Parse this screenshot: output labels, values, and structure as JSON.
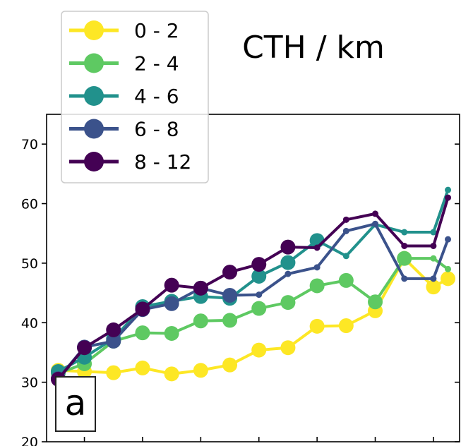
{
  "chart_data": {
    "type": "line",
    "title": "CTH / km",
    "panel_label": "a",
    "xlabel": "",
    "ylabel": "",
    "ylim": [
      20,
      75
    ],
    "yticks": [
      20,
      30,
      40,
      50,
      60,
      70
    ],
    "xlim": [
      0.2,
      14.4
    ],
    "legend_placement": "top-left",
    "series": [
      {
        "name": "0 - 2",
        "color": "#fde725",
        "x": [
          0.6,
          1.5,
          2.5,
          3.5,
          4.5,
          5.5,
          6.5,
          7.5,
          8.5,
          9.5,
          10.5,
          11.5,
          12.5,
          13.5,
          14.0
        ],
        "y": [
          32.0,
          31.8,
          31.6,
          32.4,
          31.4,
          32.0,
          32.9,
          35.4,
          35.8,
          39.4,
          39.5,
          42.0,
          50.8,
          46.0,
          47.4
        ],
        "big": [
          true,
          true,
          true,
          true,
          true,
          true,
          true,
          true,
          true,
          true,
          true,
          true,
          true,
          true,
          true
        ]
      },
      {
        "name": "2 - 4",
        "color": "#5ec962",
        "x": [
          0.6,
          1.5,
          2.5,
          3.5,
          4.5,
          5.5,
          6.5,
          7.5,
          8.5,
          9.5,
          10.5,
          11.5,
          12.5,
          13.5,
          14.0
        ],
        "y": [
          31.5,
          33.1,
          36.9,
          38.3,
          38.2,
          40.3,
          40.4,
          42.4,
          43.4,
          46.2,
          47.1,
          43.5,
          50.8,
          50.8,
          49.0
        ],
        "big": [
          true,
          true,
          true,
          true,
          true,
          true,
          true,
          true,
          true,
          true,
          true,
          true,
          true,
          false,
          false
        ]
      },
      {
        "name": "4 - 6",
        "color": "#21918c",
        "x": [
          0.6,
          1.5,
          2.5,
          3.5,
          4.5,
          5.5,
          6.5,
          7.5,
          8.5,
          9.5,
          10.5,
          11.5,
          12.5,
          13.5,
          14.0
        ],
        "y": [
          31.8,
          34.2,
          37.3,
          42.7,
          43.6,
          44.4,
          44.1,
          47.8,
          50.1,
          53.8,
          51.2,
          56.5,
          55.2,
          55.2,
          62.3
        ],
        "big": [
          true,
          true,
          true,
          true,
          true,
          true,
          true,
          true,
          true,
          true,
          false,
          false,
          false,
          false,
          false
        ]
      },
      {
        "name": "6 - 8",
        "color": "#3b528b",
        "x": [
          0.6,
          1.5,
          2.5,
          3.5,
          4.5,
          5.5,
          6.5,
          7.5,
          8.5,
          9.5,
          10.5,
          11.5,
          12.5,
          13.5,
          14.0
        ],
        "y": [
          30.6,
          35.9,
          36.9,
          42.2,
          43.2,
          45.8,
          44.6,
          44.7,
          48.2,
          49.3,
          55.4,
          56.6,
          47.4,
          47.4,
          54.0
        ],
        "big": [
          true,
          true,
          true,
          true,
          true,
          true,
          true,
          false,
          false,
          false,
          false,
          false,
          false,
          false,
          false
        ]
      },
      {
        "name": "8 - 12",
        "color": "#440154",
        "x": [
          0.6,
          1.5,
          2.5,
          3.5,
          4.5,
          5.5,
          6.5,
          7.5,
          8.5,
          9.5,
          10.5,
          11.5,
          12.5,
          13.5,
          14.0
        ],
        "y": [
          30.5,
          35.8,
          38.8,
          42.3,
          46.3,
          45.8,
          48.5,
          49.8,
          52.7,
          52.6,
          57.3,
          58.3,
          52.9,
          52.9,
          61.0
        ],
        "big": [
          true,
          true,
          true,
          true,
          true,
          true,
          true,
          true,
          true,
          false,
          false,
          false,
          false,
          false,
          false
        ]
      }
    ]
  }
}
